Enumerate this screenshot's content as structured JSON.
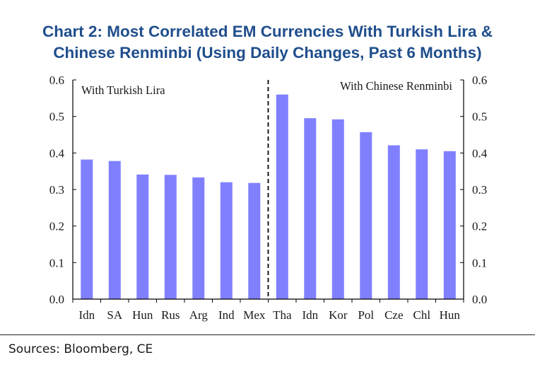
{
  "title": {
    "line1": "Chart 2: Most Correlated EM Currencies With Turkish Lira &",
    "line2": "Chinese Renminbi (Using Daily Changes, Past 6 Months)"
  },
  "source": "Sources: Bloomberg, CE",
  "colors": {
    "bar": "#8080ff",
    "title": "#1f4e8c",
    "axis": "#000000"
  },
  "chart_data": {
    "type": "bar",
    "title": "Chart 2: Most Correlated EM Currencies With Turkish Lira & Chinese Renminbi (Using Daily Changes, Past 6 Months)",
    "xlabel": "",
    "ylabel": "",
    "ylim": [
      0,
      0.6
    ],
    "yticks": [
      "0.0",
      "0.1",
      "0.2",
      "0.3",
      "0.4",
      "0.5",
      "0.6"
    ],
    "y2ticks": [
      "0.0",
      "0.1",
      "0.2",
      "0.3",
      "0.4",
      "0.5",
      "0.6"
    ],
    "grid": false,
    "groups": [
      {
        "label": "With Turkish Lira",
        "categories": [
          "Idn",
          "SA",
          "Hun",
          "Rus",
          "Arg",
          "Ind",
          "Mex"
        ],
        "values": [
          0.382,
          0.378,
          0.341,
          0.34,
          0.333,
          0.32,
          0.318
        ]
      },
      {
        "label": "With Chinese Renminbi",
        "categories": [
          "Tha",
          "Idn",
          "Kor",
          "Pol",
          "Cze",
          "Chl",
          "Hun"
        ],
        "values": [
          0.56,
          0.495,
          0.492,
          0.457,
          0.421,
          0.41,
          0.405
        ]
      }
    ]
  }
}
